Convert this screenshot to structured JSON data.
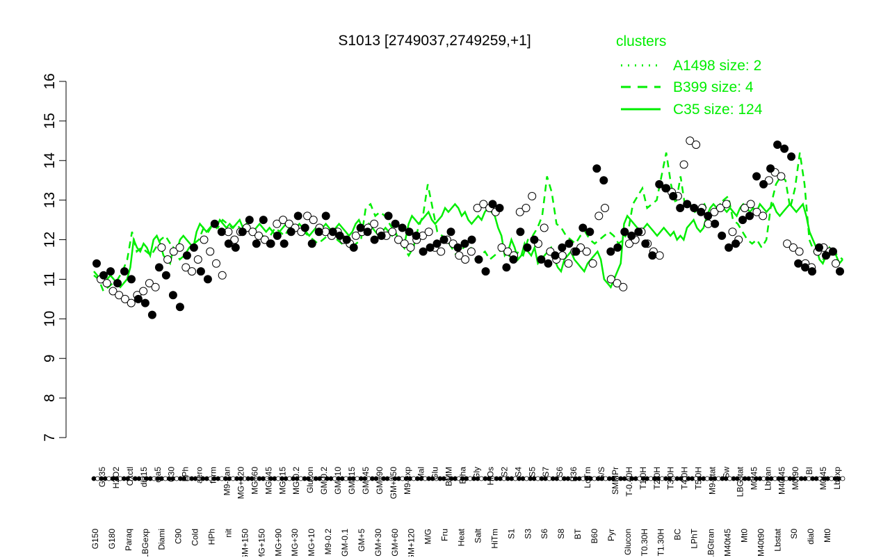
{
  "chart_data": {
    "type": "line",
    "title": "S1013 [2749037,2749259,+1]",
    "xlabel": "",
    "ylabel": "",
    "ylim": [
      7,
      16
    ],
    "yticks": [
      7,
      8,
      9,
      10,
      11,
      12,
      13,
      14,
      15,
      16
    ],
    "grid": false,
    "legend": {
      "title": "clusters",
      "placement": "top-right",
      "color": "#00ee00",
      "entries": [
        {
          "label": "A1498 size: 2",
          "style": "dotted"
        },
        {
          "label": "B399 size: 4",
          "style": "dashed"
        },
        {
          "label": "C35 size: 124",
          "style": "solid"
        }
      ]
    },
    "colors": {
      "series": "#00ee00",
      "open_point": "#ffffff",
      "filled_point": "#000000",
      "axis": "#000000"
    },
    "xtick_labels_upper": [
      "G135",
      "H2O2",
      "Oxctl",
      "dia15",
      "dia5",
      "C30",
      "LPh",
      "aero",
      "ferm",
      "M9-tran",
      "MG+120",
      "MG+60",
      "MG+45",
      "MG+15",
      "MG-0.2",
      "Glucon",
      "GM-0.2",
      "GM+10",
      "GM+15",
      "GM+45",
      "GM+90",
      "GM+150",
      "M9-exp",
      "Mal",
      "Glu",
      "BMM",
      "Etha",
      "Gly",
      "HiOs",
      "S2",
      "S4",
      "S5",
      "S7",
      "S6",
      "B36",
      "LoTm",
      "G/S",
      "SMMPr",
      "T-0.40H",
      "T1.0H",
      "T2.0H",
      "T3.0H",
      "T4.0H",
      "T5.0H",
      "M9-stat",
      "Sw",
      "LBGstat",
      "M0t45",
      "Lbtran",
      "M40t45",
      "M0t90",
      "BI",
      "M0t45",
      "Lbexp"
    ],
    "xtick_labels_lower": [
      "G150",
      "G180",
      "Paraq",
      "LBGexp",
      "Diami",
      "C90",
      "Cold",
      "HPh",
      "nit",
      "GM+150",
      "MG+150",
      "MG+90",
      "MG+30",
      "MG+10",
      "M9-0.2",
      "GM-0.1",
      "GM+5",
      "GM+30",
      "GM+60",
      "GM+120",
      "M/G",
      "Fru",
      "Heat",
      "Salt",
      "HiTm",
      "S1",
      "S3",
      "S6",
      "S8",
      "BT",
      "B60",
      "Pyr",
      "Glucon",
      "T0.30H",
      "T1.30H",
      "BC",
      "LPhT",
      "LBGtran",
      "M40t45",
      "Mt0",
      "M40t90",
      "Lbstat",
      "S0",
      "dia0",
      "Mt0"
    ],
    "solid_series": [
      11.2,
      11.1,
      11.0,
      10.9,
      11.0,
      11.1,
      11.0,
      10.9,
      10.8,
      10.9,
      11.0,
      11.3,
      12.0,
      11.8,
      11.7,
      11.9,
      11.8,
      11.6,
      12.0,
      12.1,
      11.9,
      11.6,
      11.5,
      11.4,
      11.8,
      11.7,
      12.0,
      12.1,
      12.0,
      11.9,
      11.8,
      12.2,
      12.4,
      12.3,
      12.2,
      12.3,
      12.4,
      12.3,
      12.5,
      12.4,
      12.3,
      12.4,
      12.3,
      12.4,
      12.5,
      12.3,
      12.4,
      12.3,
      12.2,
      12.3,
      12.4,
      12.3,
      12.2,
      12.3,
      12.2,
      12.1,
      12.2,
      12.3,
      12.4,
      12.3,
      12.4,
      12.3,
      12.4,
      12.3,
      12.2,
      12.1,
      12.2,
      12.3,
      12.2,
      12.3,
      12.4,
      12.3,
      12.2,
      12.3,
      12.4,
      12.3,
      12.2,
      12.1,
      12.2,
      12.4,
      12.5,
      12.3,
      12.2,
      12.4,
      12.3,
      12.2,
      12.1,
      12.2,
      12.3,
      12.2,
      12.1,
      12.2,
      12.0,
      11.9,
      12.0,
      12.4,
      12.6,
      12.5,
      12.4,
      12.5,
      12.6,
      12.7,
      12.5,
      12.4,
      12.5,
      12.6,
      12.8,
      12.7,
      12.8,
      12.9,
      12.8,
      12.6,
      12.7,
      12.5,
      12.4,
      12.5,
      12.6,
      12.5,
      12.7,
      12.8,
      12.7,
      12.6,
      12.3,
      12.1,
      11.6,
      11.7,
      12.0,
      11.8,
      11.5,
      11.6,
      11.9,
      11.7,
      11.6,
      11.8,
      11.4,
      11.5,
      11.6,
      11.7,
      11.8,
      11.5,
      11.3,
      11.2,
      11.5,
      11.6,
      11.7,
      11.5,
      11.4,
      11.3,
      11.2,
      11.4,
      11.5,
      11.6,
      11.7,
      11.5,
      11.0,
      10.9,
      10.8,
      11.0,
      11.2,
      11.4,
      12.4,
      12.6,
      12.5,
      12.4,
      12.3,
      12.2,
      12.3,
      12.4,
      12.3,
      12.2,
      12.1,
      12.2,
      12.3,
      12.2,
      12.1,
      12.2,
      12.0,
      12.1,
      12.0,
      12.3,
      12.4,
      12.5,
      12.3,
      12.2,
      12.3,
      12.6,
      12.8,
      12.9,
      12.8,
      12.9,
      12.8,
      12.7,
      12.8,
      12.7,
      12.6,
      12.8,
      12.9,
      12.8,
      12.7,
      12.8,
      12.7,
      12.9,
      12.8,
      12.7,
      12.8,
      12.9,
      12.7,
      12.6,
      12.7,
      12.8,
      12.9,
      12.8,
      12.7,
      12.8,
      12.9,
      12.6,
      12.2,
      12.0,
      11.8,
      11.5,
      11.4,
      11.6,
      11.8,
      11.7,
      11.6,
      11.4,
      11.5
    ],
    "dashed_series": [
      11.1,
      11.0,
      10.7,
      10.8,
      10.9,
      11.0,
      11.2,
      11.5,
      12.2,
      11.7,
      11.8,
      11.7,
      11.6,
      11.8,
      12.0,
      12.1,
      11.9,
      11.7,
      11.5,
      11.6,
      11.8,
      11.9,
      12.0,
      12.3,
      12.2,
      12.4,
      12.3,
      12.5,
      12.4,
      12.3,
      12.4,
      12.2,
      12.3,
      12.2,
      12.1,
      12.2,
      12.0,
      12.1,
      12.3,
      12.2,
      12.1,
      12.3,
      12.2,
      12.3,
      12.2,
      12.1,
      12.0,
      11.9,
      12.0,
      12.1,
      12.2,
      12.0,
      11.9,
      12.0,
      11.8,
      11.9,
      12.0,
      12.8,
      12.9,
      12.6,
      12.7,
      12.6,
      12.4,
      12.2,
      12.0,
      11.8,
      11.6,
      11.8,
      12.3,
      12.6,
      13.4,
      12.8,
      12.2,
      12.1,
      12.0,
      11.8,
      11.6,
      11.7,
      11.9,
      11.8,
      11.5,
      11.6,
      11.7,
      11.5,
      11.6,
      11.7,
      11.8,
      11.6,
      11.5,
      11.7,
      11.6,
      12.0,
      12.1,
      12.3,
      12.6,
      13.6,
      13.2,
      12.4,
      12.3,
      12.1,
      12.0,
      11.9,
      12.1,
      12.2,
      12.0,
      11.9,
      12.0,
      12.1,
      12.2,
      12.1,
      11.9,
      12.0,
      12.2,
      12.9,
      13.1,
      13.3,
      12.8,
      12.9,
      13.0,
      13.6,
      14.2,
      13.4,
      12.9,
      13.6,
      12.8,
      12.9,
      12.7,
      12.8,
      12.9,
      12.6,
      12.7,
      12.8,
      13.0,
      13.1,
      12.5,
      12.4,
      12.2,
      12.0,
      11.9,
      12.0,
      11.8,
      12.0,
      12.9,
      13.4,
      13.6,
      13.5,
      12.8,
      13.3,
      14.2,
      13.4,
      12.0,
      11.7,
      11.6,
      11.5,
      11.6,
      11.7,
      11.6,
      11.5
    ],
    "open_points": [
      [
        11.0,
        0
      ],
      [
        10.9,
        0
      ],
      [
        10.7,
        0
      ],
      [
        10.6,
        0
      ],
      [
        10.5,
        0
      ],
      [
        10.4,
        0
      ],
      [
        10.6,
        0
      ],
      [
        10.7,
        0
      ],
      [
        10.9,
        0
      ],
      [
        10.8,
        0
      ],
      [
        11.8,
        0
      ],
      [
        11.5,
        0
      ],
      [
        11.7,
        0
      ],
      [
        11.8,
        0
      ],
      [
        11.3,
        0
      ],
      [
        11.2,
        0
      ],
      [
        11.5,
        0
      ],
      [
        12.0,
        0
      ],
      [
        11.7,
        0
      ],
      [
        11.4,
        0
      ],
      [
        11.1,
        0
      ],
      [
        12.2,
        0
      ],
      [
        12.0,
        0
      ],
      [
        12.2,
        0
      ],
      [
        12.3,
        0
      ],
      [
        12.2,
        0
      ],
      [
        12.1,
        0
      ],
      [
        12.0,
        0
      ],
      [
        11.9,
        0
      ],
      [
        12.4,
        0
      ],
      [
        12.5,
        0
      ],
      [
        12.4,
        0
      ],
      [
        12.3,
        0
      ],
      [
        12.2,
        0
      ],
      [
        12.6,
        0
      ],
      [
        12.5,
        0
      ],
      [
        12.3,
        0
      ],
      [
        12.2,
        0
      ],
      [
        12.1,
        0
      ],
      [
        12.2,
        0
      ],
      [
        12.0,
        0
      ],
      [
        11.9,
        0
      ],
      [
        12.1,
        0
      ],
      [
        12.2,
        0
      ],
      [
        12.3,
        0
      ],
      [
        12.4,
        0
      ],
      [
        12.2,
        0
      ],
      [
        12.1,
        0
      ],
      [
        12.2,
        0
      ],
      [
        12.0,
        0
      ],
      [
        11.9,
        0
      ],
      [
        11.8,
        0
      ],
      [
        12.0,
        0
      ],
      [
        12.1,
        0
      ],
      [
        12.2,
        0
      ],
      [
        11.8,
        0
      ],
      [
        11.7,
        0
      ],
      [
        12.0,
        0
      ],
      [
        11.9,
        0
      ],
      [
        11.6,
        0
      ],
      [
        11.5,
        0
      ],
      [
        11.7,
        0
      ],
      [
        12.8,
        0
      ],
      [
        12.9,
        0
      ],
      [
        12.8,
        0
      ],
      [
        12.7,
        0
      ],
      [
        11.8,
        0
      ],
      [
        11.7,
        0
      ],
      [
        11.6,
        0
      ],
      [
        12.7,
        0
      ],
      [
        12.8,
        0
      ],
      [
        13.1,
        0
      ],
      [
        11.9,
        0
      ],
      [
        12.3,
        0
      ],
      [
        11.7,
        0
      ],
      [
        11.5,
        0
      ],
      [
        11.6,
        0
      ],
      [
        11.4,
        0
      ],
      [
        11.7,
        0
      ],
      [
        11.8,
        0
      ],
      [
        11.7,
        0
      ],
      [
        11.4,
        0
      ],
      [
        12.6,
        0
      ],
      [
        12.8,
        0
      ],
      [
        11.0,
        0
      ],
      [
        10.9,
        0
      ],
      [
        10.8,
        0
      ],
      [
        11.9,
        0
      ],
      [
        12.0,
        0
      ],
      [
        12.2,
        0
      ],
      [
        11.9,
        0
      ],
      [
        11.7,
        0
      ],
      [
        11.6,
        0
      ],
      [
        13.3,
        0
      ],
      [
        13.2,
        0
      ],
      [
        13.1,
        0
      ],
      [
        13.9,
        0
      ],
      [
        14.5,
        0
      ],
      [
        14.4,
        0
      ],
      [
        12.8,
        0
      ],
      [
        12.4,
        0
      ],
      [
        12.7,
        0
      ],
      [
        12.8,
        0
      ],
      [
        12.9,
        0
      ],
      [
        12.2,
        0
      ],
      [
        12.0,
        0
      ],
      [
        12.8,
        0
      ],
      [
        12.9,
        0
      ],
      [
        12.7,
        0
      ],
      [
        12.6,
        0
      ],
      [
        13.5,
        0
      ],
      [
        13.7,
        0
      ],
      [
        13.6,
        0
      ],
      [
        11.9,
        0
      ],
      [
        11.8,
        0
      ],
      [
        11.7,
        0
      ],
      [
        11.4,
        0
      ],
      [
        11.3,
        0
      ],
      [
        11.7,
        0
      ],
      [
        11.8,
        0
      ],
      [
        11.7,
        0
      ],
      [
        11.4,
        0
      ]
    ],
    "filled_points": [
      11.4,
      11.1,
      11.2,
      10.9,
      11.2,
      11.0,
      10.5,
      10.4,
      10.1,
      11.3,
      11.1,
      10.6,
      10.3,
      11.6,
      11.8,
      11.2,
      11.0,
      12.4,
      12.2,
      11.9,
      11.8,
      12.2,
      12.5,
      11.9,
      12.5,
      11.9,
      12.1,
      11.9,
      12.2,
      12.6,
      12.3,
      11.9,
      12.2,
      12.6,
      12.2,
      12.1,
      12.0,
      11.8,
      12.3,
      12.2,
      12.0,
      12.1,
      12.6,
      12.4,
      12.3,
      12.2,
      12.1,
      11.7,
      11.8,
      11.9,
      12.0,
      12.2,
      11.8,
      11.9,
      12.0,
      11.5,
      11.2,
      12.9,
      12.8,
      11.3,
      11.5,
      12.2,
      11.8,
      12.0,
      11.5,
      11.4,
      11.6,
      11.8,
      11.9,
      11.7,
      12.3,
      12.2,
      13.8,
      13.5,
      11.7,
      11.8,
      12.2,
      12.1,
      12.2,
      11.9,
      11.6,
      13.4,
      13.3,
      13.1,
      12.8,
      12.9,
      12.8,
      12.7,
      12.6,
      12.4,
      12.1,
      11.8,
      11.9,
      12.5,
      12.6,
      13.6,
      13.4,
      13.8,
      14.4,
      14.3,
      14.1,
      11.4,
      11.3,
      11.2,
      11.8,
      11.6,
      11.7,
      11.2
    ]
  }
}
